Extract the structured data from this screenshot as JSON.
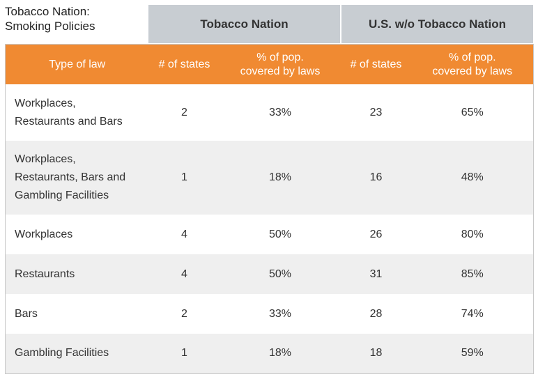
{
  "title": [
    "Tobacco Nation:",
    "Smoking Policies"
  ],
  "groups": [
    "Tobacco Nation",
    "U.S. w/o Tobacco Nation"
  ],
  "columns": [
    [
      "Type of law"
    ],
    [
      "# of states"
    ],
    [
      "% of pop.",
      "covered by laws"
    ],
    [
      "# of states"
    ],
    [
      "% of pop.",
      "covered by laws"
    ]
  ],
  "rows": [
    [
      [
        "Workplaces,",
        "Restaurants and Bars"
      ],
      "2",
      "33%",
      "23",
      "65%"
    ],
    [
      [
        "Workplaces,",
        "Restaurants, Bars and",
        "Gambling Facilities"
      ],
      "1",
      "18%",
      "16",
      "48%"
    ],
    [
      [
        "Workplaces"
      ],
      "4",
      "50%",
      "26",
      "80%"
    ],
    [
      [
        "Restaurants"
      ],
      "4",
      "50%",
      "31",
      "85%"
    ],
    [
      [
        "Bars"
      ],
      "2",
      "33%",
      "28",
      "74%"
    ],
    [
      [
        "Gambling Facilities"
      ],
      "1",
      "18%",
      "18",
      "59%"
    ]
  ]
}
